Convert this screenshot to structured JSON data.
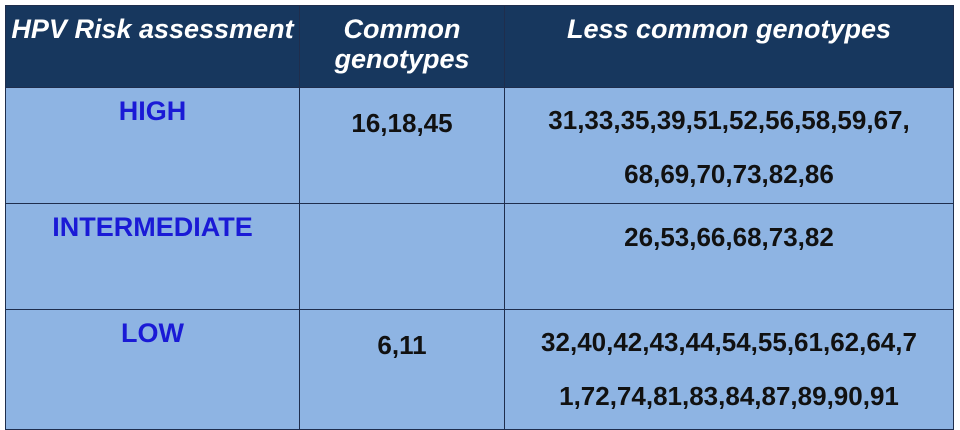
{
  "table": {
    "headers": [
      "HPV Risk assessment",
      "Common genotypes",
      "Less common genotypes"
    ],
    "rows": [
      {
        "risk": "HIGH",
        "common": "16,18,45",
        "less_line1": "31,33,35,39,51,52,56,58,59,67,",
        "less_line2": "68,69,70,73,82,86"
      },
      {
        "risk": "INTERMEDIATE",
        "common": "",
        "less_line1": "26,53,66,68,73,82",
        "less_line2": ""
      },
      {
        "risk": "LOW",
        "common": "6,11",
        "less_line1": "32,40,42,43,44,54,55,61,62,64,7",
        "less_line2": "1,72,74,81,83,84,87,89,90,91"
      }
    ]
  },
  "colors": {
    "header_bg": "#17375e",
    "header_text": "#ffffff",
    "cell_bg": "#8eb4e3",
    "risk_text": "#1a1ad6",
    "value_text": "#111111"
  }
}
